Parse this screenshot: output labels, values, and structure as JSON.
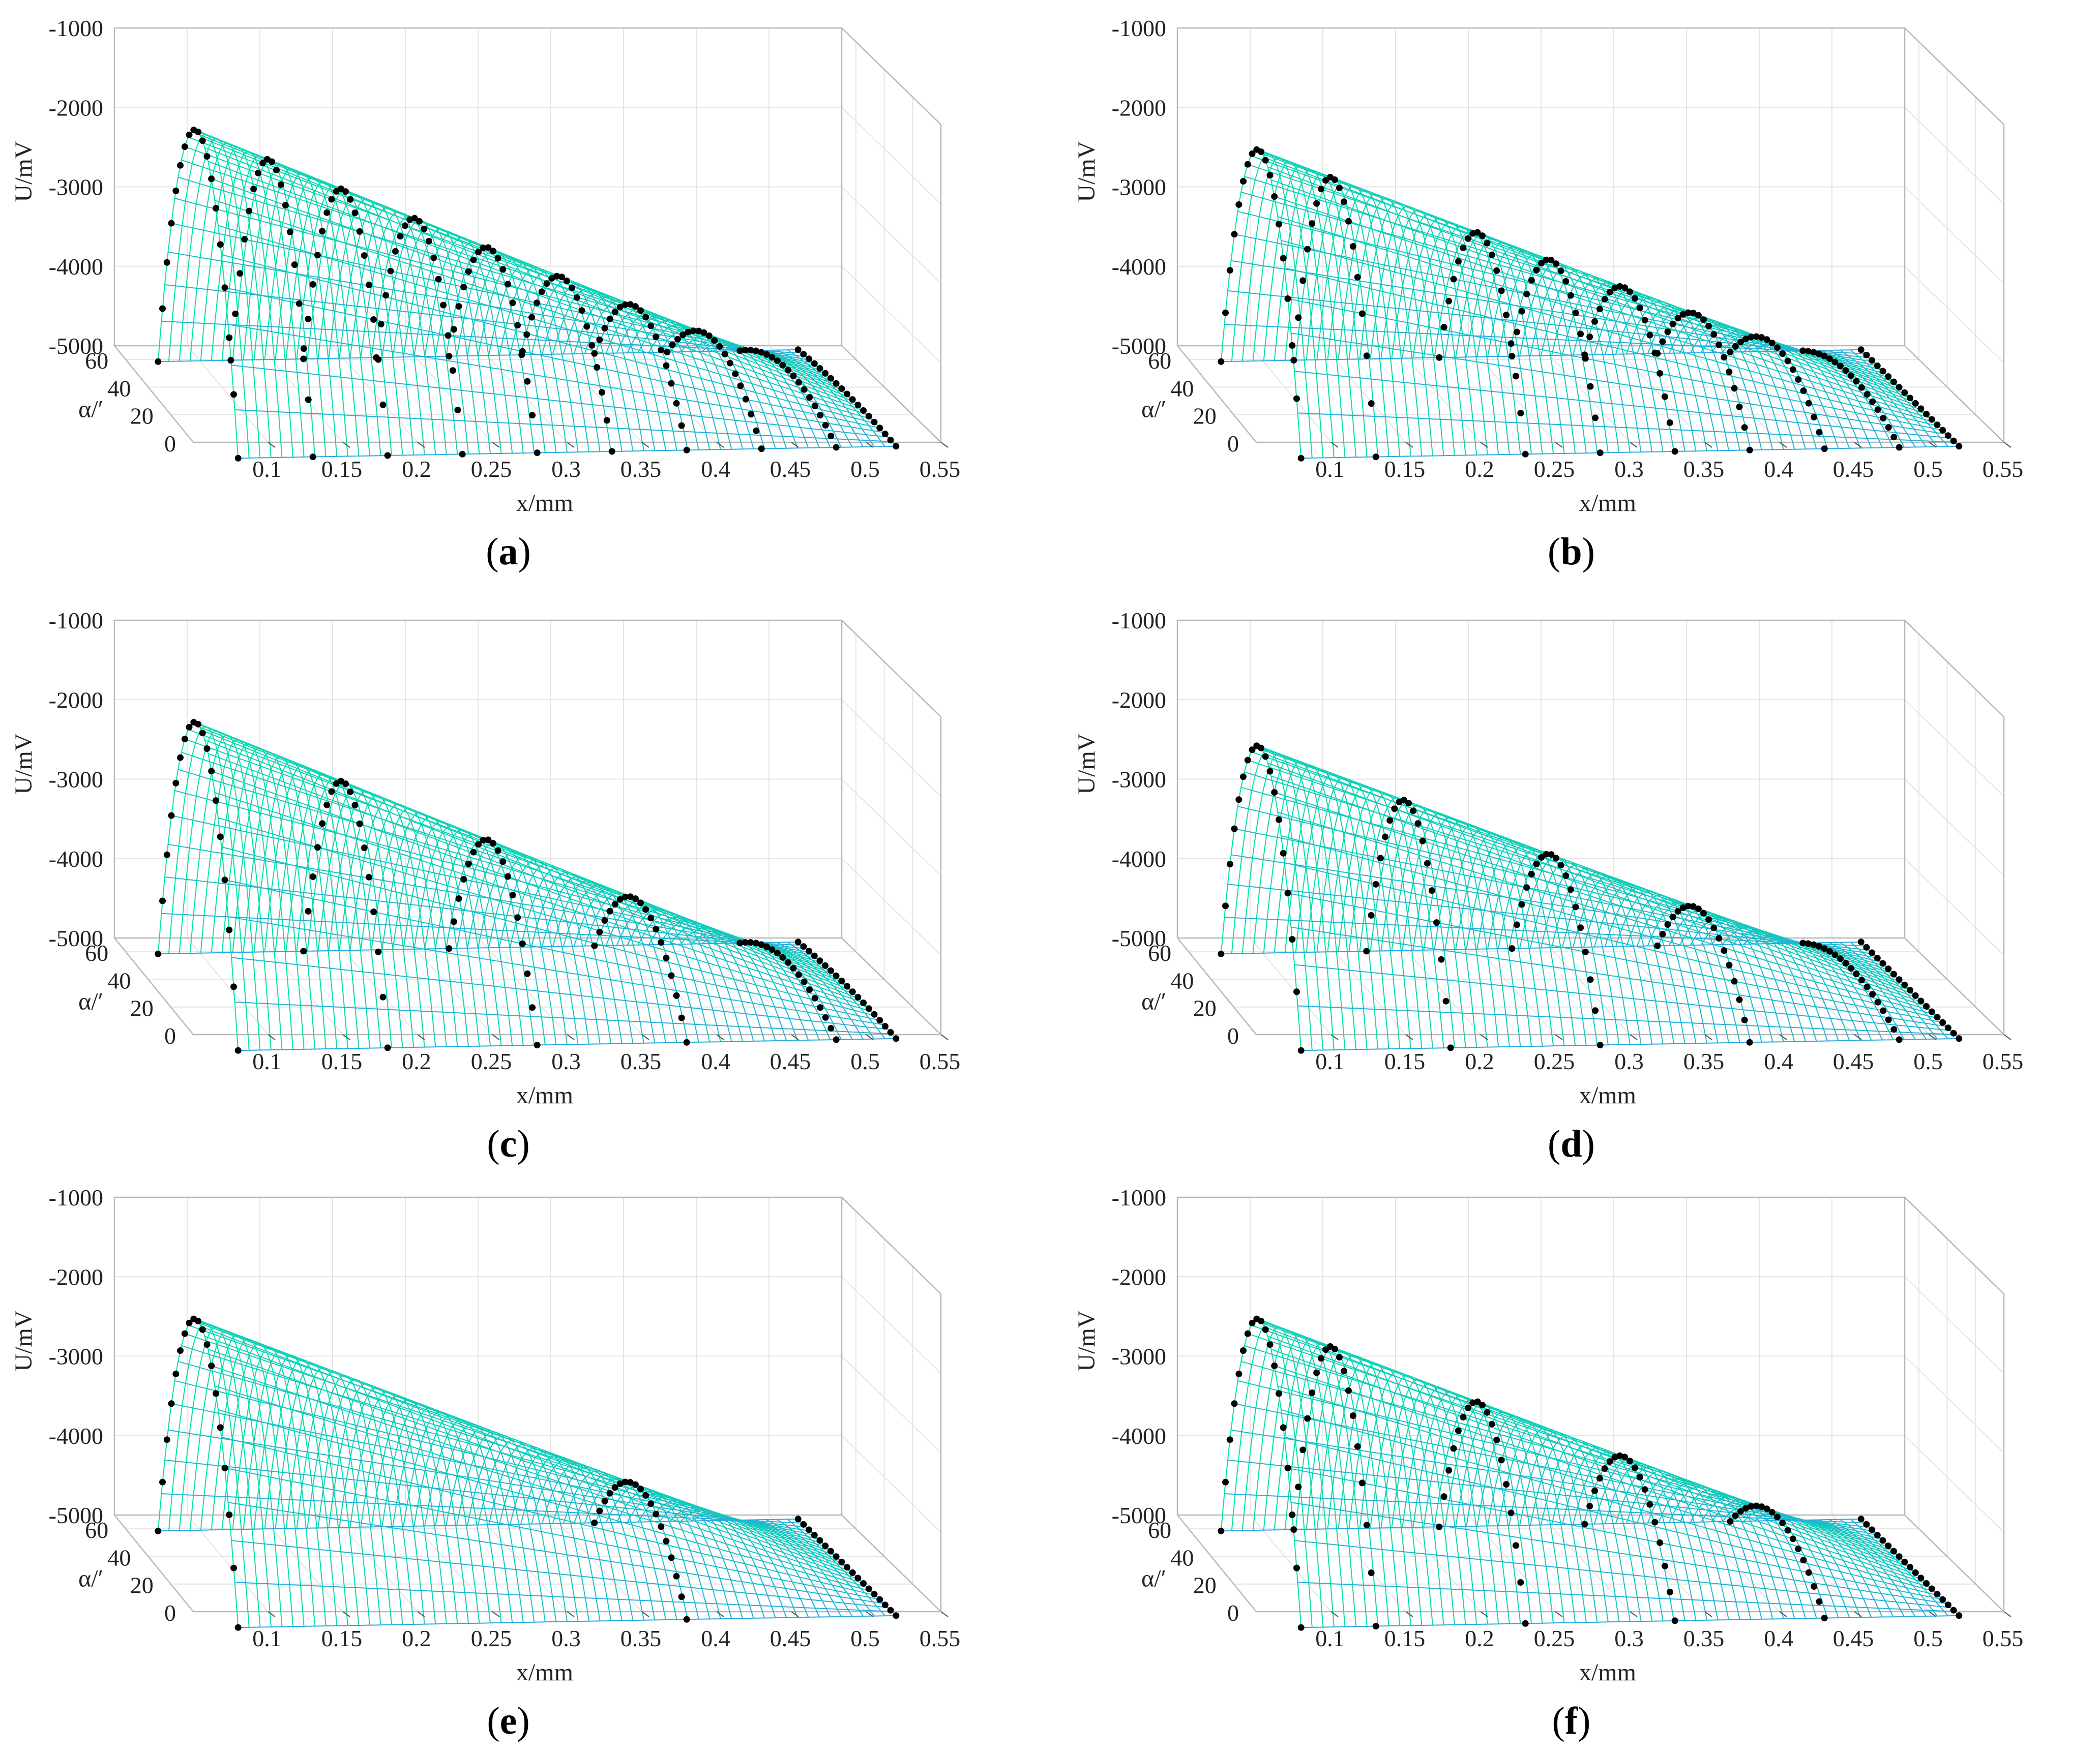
{
  "figure": {
    "panels_order": [
      "a",
      "b",
      "c",
      "d",
      "e",
      "f"
    ]
  },
  "chart_data": [
    {
      "panel": "a",
      "type": "surface3d",
      "caption_open": "(",
      "caption_letter": "a",
      "caption_close": ")",
      "xlabel": "x/mm",
      "ylabel": "α/′",
      "zlabel": "U/mV",
      "xlim": [
        0.05,
        0.55
      ],
      "ylim": [
        0,
        70
      ],
      "zlim": [
        -5000,
        -1000
      ],
      "xticks": [
        "0.1",
        "0.15",
        "0.2",
        "0.25",
        "0.3",
        "0.35",
        "0.4",
        "0.45",
        "0.5",
        "0.55"
      ],
      "yticks": [
        "0",
        "20",
        "40",
        "60"
      ],
      "zticks": [
        "-1000",
        "-2000",
        "-3000",
        "-4000",
        "-5000"
      ],
      "surface": {
        "x_start": 0.08,
        "x_end": 0.52,
        "peak_start": -1700,
        "peak_end": -5000,
        "edge_start": -5200,
        "edge_end": -5050
      },
      "measured_x": [
        0.08,
        0.13,
        0.18,
        0.23,
        0.28,
        0.33,
        0.38,
        0.43,
        0.48,
        0.52
      ],
      "colors": {
        "top": "#00e6a0",
        "bottom": "#29a8e0",
        "points": "#000000"
      }
    },
    {
      "panel": "b",
      "type": "surface3d",
      "caption_open": "(",
      "caption_letter": "b",
      "caption_close": ")",
      "xlabel": "x/mm",
      "ylabel": "α/′",
      "zlabel": "U/mV",
      "xlim": [
        0.05,
        0.55
      ],
      "ylim": [
        0,
        70
      ],
      "zlim": [
        -5000,
        -1000
      ],
      "xticks": [
        "0.1",
        "0.15",
        "0.2",
        "0.25",
        "0.3",
        "0.35",
        "0.4",
        "0.45",
        "0.5",
        "0.55"
      ],
      "yticks": [
        "0",
        "20",
        "40",
        "60"
      ],
      "zticks": [
        "-1000",
        "-2000",
        "-3000",
        "-4000",
        "-5000"
      ],
      "surface": {
        "x_start": 0.08,
        "x_end": 0.52,
        "peak_start": -1950,
        "peak_end": -5050,
        "edge_start": -5200,
        "edge_end": -5050
      },
      "measured_x": [
        0.08,
        0.13,
        0.23,
        0.28,
        0.33,
        0.38,
        0.43,
        0.48,
        0.52
      ],
      "colors": {
        "top": "#00e6a0",
        "bottom": "#29a8e0",
        "points": "#000000"
      }
    },
    {
      "panel": "c",
      "type": "surface3d",
      "caption_open": "(",
      "caption_letter": "c",
      "caption_close": ")",
      "xlabel": "x/mm",
      "ylabel": "α/′",
      "zlabel": "U/mV",
      "xlim": [
        0.05,
        0.55
      ],
      "ylim": [
        0,
        70
      ],
      "zlim": [
        -5000,
        -1000
      ],
      "xticks": [
        "0.1",
        "0.15",
        "0.2",
        "0.25",
        "0.3",
        "0.35",
        "0.4",
        "0.45",
        "0.5",
        "0.55"
      ],
      "yticks": [
        "0",
        "20",
        "40",
        "60"
      ],
      "zticks": [
        "-1000",
        "-2000",
        "-3000",
        "-4000",
        "-5000"
      ],
      "surface": {
        "x_start": 0.08,
        "x_end": 0.52,
        "peak_start": -1700,
        "peak_end": -5000,
        "edge_start": -5200,
        "edge_end": -5050
      },
      "measured_x": [
        0.08,
        0.18,
        0.28,
        0.38,
        0.48,
        0.52
      ],
      "colors": {
        "top": "#00e6a0",
        "bottom": "#29a8e0",
        "points": "#000000"
      }
    },
    {
      "panel": "d",
      "type": "surface3d",
      "caption_open": "(",
      "caption_letter": "d",
      "caption_close": ")",
      "xlabel": "x/mm",
      "ylabel": "α/′",
      "zlabel": "U/mV",
      "xlim": [
        0.05,
        0.55
      ],
      "ylim": [
        0,
        70
      ],
      "zlim": [
        -5000,
        -1000
      ],
      "xticks": [
        "0.1",
        "0.15",
        "0.2",
        "0.25",
        "0.3",
        "0.35",
        "0.4",
        "0.45",
        "0.5",
        "0.55"
      ],
      "yticks": [
        "0",
        "20",
        "40",
        "60"
      ],
      "zticks": [
        "-1000",
        "-2000",
        "-3000",
        "-4000",
        "-5000"
      ],
      "surface": {
        "x_start": 0.08,
        "x_end": 0.52,
        "peak_start": -2000,
        "peak_end": -5050,
        "edge_start": -5200,
        "edge_end": -5050
      },
      "measured_x": [
        0.08,
        0.18,
        0.28,
        0.38,
        0.48,
        0.52
      ],
      "colors": {
        "top": "#00e6a0",
        "bottom": "#29a8e0",
        "points": "#000000"
      }
    },
    {
      "panel": "e",
      "type": "surface3d",
      "caption_open": "(",
      "caption_letter": "e",
      "caption_close": ")",
      "xlabel": "x/mm",
      "ylabel": "α/′",
      "zlabel": "U/mV",
      "xlim": [
        0.05,
        0.55
      ],
      "ylim": [
        0,
        70
      ],
      "zlim": [
        -5000,
        -1000
      ],
      "xticks": [
        "0.1",
        "0.15",
        "0.2",
        "0.25",
        "0.3",
        "0.35",
        "0.4",
        "0.45",
        "0.5",
        "0.55"
      ],
      "yticks": [
        "0",
        "20",
        "40",
        "60"
      ],
      "zticks": [
        "-1000",
        "-2000",
        "-3000",
        "-4000",
        "-5000"
      ],
      "surface": {
        "x_start": 0.08,
        "x_end": 0.52,
        "peak_start": -1950,
        "peak_end": -5050,
        "edge_start": -5200,
        "edge_end": -5050
      },
      "measured_x": [
        0.08,
        0.38,
        0.52
      ],
      "colors": {
        "top": "#00e6a0",
        "bottom": "#29a8e0",
        "points": "#000000"
      }
    },
    {
      "panel": "f",
      "type": "surface3d",
      "caption_open": "(",
      "caption_letter": "f",
      "caption_close": ")",
      "xlabel": "x/mm",
      "ylabel": "α/′",
      "zlabel": "U/mV",
      "xlim": [
        0.05,
        0.55
      ],
      "ylim": [
        0,
        70
      ],
      "zlim": [
        -5000,
        -1000
      ],
      "xticks": [
        "0.1",
        "0.15",
        "0.2",
        "0.25",
        "0.3",
        "0.35",
        "0.4",
        "0.45",
        "0.5",
        "0.55"
      ],
      "yticks": [
        "0",
        "20",
        "40",
        "60"
      ],
      "zticks": [
        "-1000",
        "-2000",
        "-3000",
        "-4000",
        "-5000"
      ],
      "surface": {
        "x_start": 0.08,
        "x_end": 0.52,
        "peak_start": -1950,
        "peak_end": -5050,
        "edge_start": -5200,
        "edge_end": -5050
      },
      "measured_x": [
        0.08,
        0.13,
        0.23,
        0.33,
        0.43,
        0.52
      ],
      "colors": {
        "top": "#00e6a0",
        "bottom": "#29a8e0",
        "points": "#000000"
      }
    }
  ]
}
